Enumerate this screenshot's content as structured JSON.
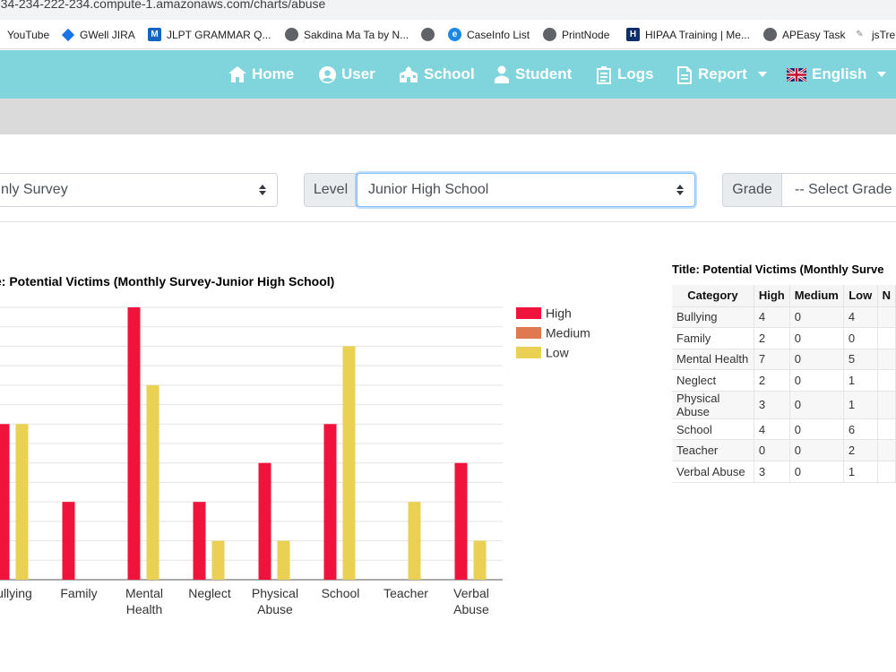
{
  "browser": {
    "url": "-34-234-222-234.compute-1.amazonaws.com/charts/abuse",
    "bookmarks": [
      {
        "label": "YouTube",
        "icon": "youtube-icon"
      },
      {
        "label": "GWell JIRA",
        "icon": "jira-icon"
      },
      {
        "label": "JLPT GRAMMAR Q...",
        "icon": "m-icon"
      },
      {
        "label": "Sakdina Ma Ta by N...",
        "icon": "globe-icon"
      },
      {
        "label": "",
        "icon": "globe-icon"
      },
      {
        "label": "CaseInfo List",
        "icon": "caseinfo-icon"
      },
      {
        "label": "PrintNode",
        "icon": "globe-icon"
      },
      {
        "label": "HIPAA Training | Me...",
        "icon": "h-icon"
      },
      {
        "label": "APEasy Task",
        "icon": "globe-icon"
      },
      {
        "label": "jsTre",
        "icon": "js-icon"
      }
    ]
  },
  "nav": {
    "home": "Home",
    "user": "User",
    "school": "School",
    "student": "Student",
    "logs": "Logs",
    "report": "Report",
    "language": "English"
  },
  "filters": {
    "survey_value": "nly Survey",
    "level_label": "Level",
    "level_value": "Junior High School",
    "grade_label": "Grade",
    "grade_value": "-- Select Grade --"
  },
  "chart_data": {
    "type": "bar",
    "title": "e: Potential Victims (Monthly Survey-Junior High School)",
    "categories": [
      "Bullying",
      "Family",
      "Mental Health",
      "Neglect",
      "Physical Abuse",
      "School",
      "Teacher",
      "Verbal Abuse"
    ],
    "category_display": [
      [
        "ullying"
      ],
      [
        "Family"
      ],
      [
        "Mental",
        "Health"
      ],
      [
        "Neglect"
      ],
      [
        "Physical",
        "Abuse"
      ],
      [
        "School"
      ],
      [
        "Teacher"
      ],
      [
        "Verbal",
        "Abuse"
      ]
    ],
    "series": [
      {
        "name": "High",
        "color": "#f0143c",
        "values": [
          4,
          2,
          7,
          2,
          3,
          4,
          0,
          3
        ]
      },
      {
        "name": "Medium",
        "color": "#e07850",
        "values": [
          0,
          0,
          0,
          0,
          0,
          0,
          0,
          0
        ]
      },
      {
        "name": "Low",
        "color": "#ead153",
        "values": [
          4,
          0,
          5,
          1,
          1,
          6,
          2,
          1
        ]
      }
    ],
    "ylim": [
      0,
      7
    ],
    "grid": true,
    "legend_position": "right"
  },
  "table": {
    "title": "Title: Potential Victims (Monthly Surve",
    "headers": [
      "Category",
      "High",
      "Medium",
      "Low",
      "N"
    ],
    "rows": [
      [
        "Bullying",
        "4",
        "0",
        "4"
      ],
      [
        "Family",
        "2",
        "0",
        "0"
      ],
      [
        "Mental Health",
        "7",
        "0",
        "5"
      ],
      [
        "Neglect",
        "2",
        "0",
        "1"
      ],
      [
        "Physical Abuse",
        "3",
        "0",
        "1"
      ],
      [
        "School",
        "4",
        "0",
        "6"
      ],
      [
        "Teacher",
        "0",
        "0",
        "2"
      ],
      [
        "Verbal Abuse",
        "3",
        "0",
        "1"
      ]
    ]
  }
}
